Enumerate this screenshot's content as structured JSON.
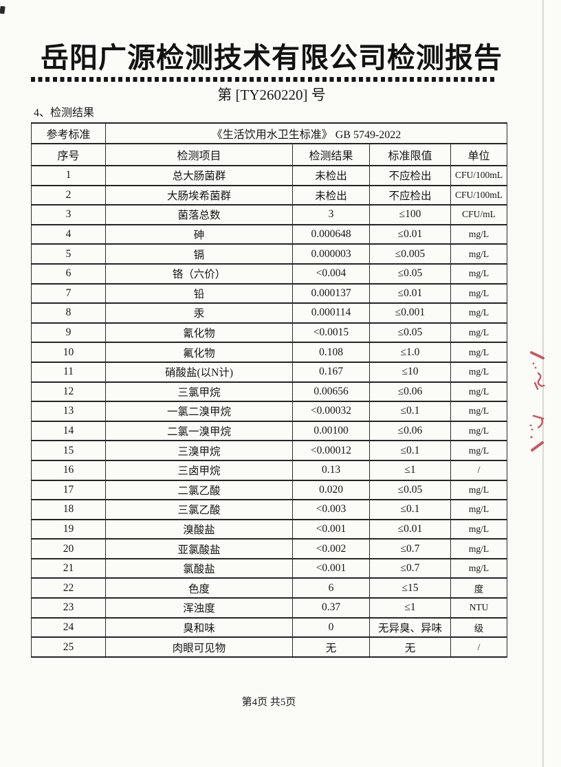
{
  "page": {
    "title": "岳阳广源检测技术有限公司检测报告",
    "report_no": "第 [TY260220] 号",
    "section": "4、检测结果",
    "footer": "第4页  共5页"
  },
  "table": {
    "ref_label": "参考标准",
    "ref_value": "《生活饮用水卫生标准》  GB 5749-2022",
    "headers": [
      "序号",
      "检测项目",
      "检测结果",
      "标准限值",
      "单位"
    ],
    "rows": [
      [
        "1",
        "总大肠菌群",
        "未检出",
        "不应检出",
        "CFU/100mL"
      ],
      [
        "2",
        "大肠埃希菌群",
        "未检出",
        "不应检出",
        "CFU/100mL"
      ],
      [
        "3",
        "菌落总数",
        "3",
        "≤100",
        "CFU/mL"
      ],
      [
        "4",
        "砷",
        "0.000648",
        "≤0.01",
        "mg/L"
      ],
      [
        "5",
        "镉",
        "0.000003",
        "≤0.005",
        "mg/L"
      ],
      [
        "6",
        "铬（六价）",
        "<0.004",
        "≤0.05",
        "mg/L"
      ],
      [
        "7",
        "铅",
        "0.000137",
        "≤0.01",
        "mg/L"
      ],
      [
        "8",
        "汞",
        "0.000114",
        "≤0.001",
        "mg/L"
      ],
      [
        "9",
        "氰化物",
        "<0.0015",
        "≤0.05",
        "mg/L"
      ],
      [
        "10",
        "氟化物",
        "0.108",
        "≤1.0",
        "mg/L"
      ],
      [
        "11",
        "硝酸盐(以N计)",
        "0.167",
        "≤10",
        "mg/L"
      ],
      [
        "12",
        "三氯甲烷",
        "0.00656",
        "≤0.06",
        "mg/L"
      ],
      [
        "13",
        "一氯二溴甲烷",
        "<0.00032",
        "≤0.1",
        "mg/L"
      ],
      [
        "14",
        "二氯一溴甲烷",
        "0.00100",
        "≤0.06",
        "mg/L"
      ],
      [
        "15",
        "三溴甲烷",
        "<0.00012",
        "≤0.1",
        "mg/L"
      ],
      [
        "16",
        "三卤甲烷",
        "0.13",
        "≤1",
        "/"
      ],
      [
        "17",
        "二氯乙酸",
        "0.020",
        "≤0.05",
        "mg/L"
      ],
      [
        "18",
        "三氯乙酸",
        "<0.003",
        "≤0.1",
        "mg/L"
      ],
      [
        "19",
        "溴酸盐",
        "<0.001",
        "≤0.01",
        "mg/L"
      ],
      [
        "20",
        "亚氯酸盐",
        "<0.002",
        "≤0.7",
        "mg/L"
      ],
      [
        "21",
        "氯酸盐",
        "<0.001",
        "≤0.7",
        "mg/L"
      ],
      [
        "22",
        "色度",
        "6",
        "≤15",
        "度"
      ],
      [
        "23",
        "浑浊度",
        "0.37",
        "≤1",
        "NTU"
      ],
      [
        "24",
        "臭和味",
        "0",
        "无异臭、异味",
        "级"
      ],
      [
        "25",
        "肉眼可见物",
        "无",
        "无",
        "/"
      ]
    ]
  },
  "colors": {
    "ink": "#151515",
    "border": "#2b2b2b",
    "red_mark": "#bf3f4a",
    "scan_background": "#fbfbf8"
  }
}
